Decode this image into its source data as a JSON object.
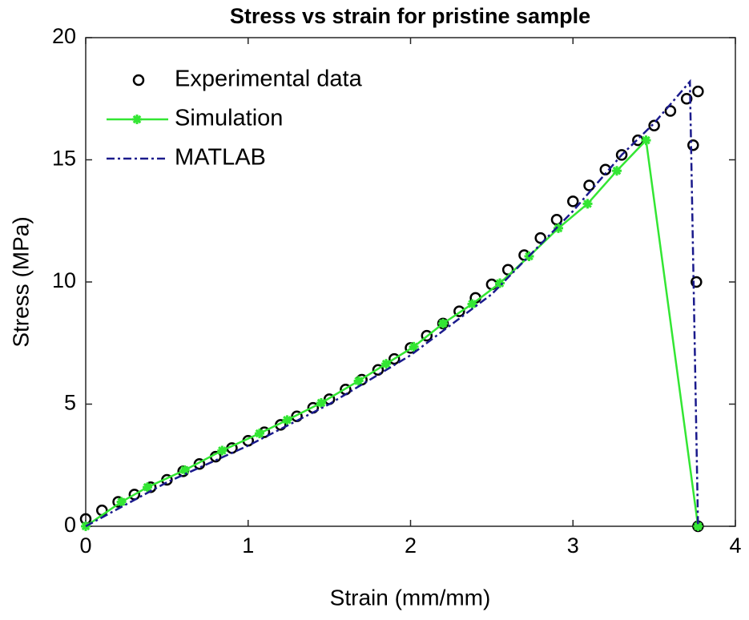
{
  "chart_data": {
    "type": "line",
    "title": "Stress vs strain for pristine sample",
    "x_label": "Strain (mm/mm)",
    "y_label": "Stress (MPa)",
    "xlim": [
      0,
      4
    ],
    "xticks": [
      0,
      1,
      2,
      3,
      4
    ],
    "ylim": [
      0,
      20
    ],
    "yticks": [
      0,
      5,
      10,
      15,
      20
    ],
    "legend": "upper left",
    "series": [
      {
        "name": "Experimental data",
        "color": "#000000",
        "marker": "o",
        "line_style": "none",
        "x": [
          0,
          0.1,
          0.2,
          0.3,
          0.4,
          0.5,
          0.6,
          0.7,
          0.8,
          0.9,
          1.0,
          1.1,
          1.2,
          1.3,
          1.4,
          1.5,
          1.6,
          1.7,
          1.8,
          1.9,
          2.0,
          2.1,
          2.2,
          2.3,
          2.4,
          2.5,
          2.6,
          2.7,
          2.8,
          2.9,
          3.0,
          3.1,
          3.2,
          3.3,
          3.4,
          3.5,
          3.6,
          3.7,
          3.77,
          3.74,
          3.76,
          3.77
        ],
        "values": [
          0.3,
          0.65,
          1.0,
          1.3,
          1.6,
          1.9,
          2.25,
          2.55,
          2.85,
          3.2,
          3.5,
          3.85,
          4.15,
          4.5,
          4.85,
          5.2,
          5.6,
          6.0,
          6.4,
          6.85,
          7.3,
          7.8,
          8.3,
          8.8,
          9.35,
          9.9,
          10.5,
          11.1,
          11.8,
          12.55,
          13.3,
          13.95,
          14.6,
          15.2,
          15.8,
          16.4,
          17.0,
          17.5,
          17.8,
          15.6,
          10.0,
          0
        ]
      },
      {
        "name": "Simulation",
        "color": "#33e633",
        "marker": "*",
        "line_style": "solid",
        "x": [
          0,
          0.22,
          0.38,
          0.61,
          0.84,
          1.07,
          1.24,
          1.45,
          1.68,
          1.85,
          2.02,
          2.2,
          2.38,
          2.55,
          2.73,
          2.91,
          3.09,
          3.27,
          3.45,
          3.77
        ],
        "values": [
          0,
          1.0,
          1.6,
          2.3,
          3.1,
          3.8,
          4.35,
          5.05,
          5.95,
          6.65,
          7.35,
          8.3,
          9.1,
          9.95,
          11.05,
          12.2,
          13.2,
          14.55,
          15.8,
          0
        ]
      },
      {
        "name": "MATLAB",
        "color": "#1a1a8c",
        "marker": "none",
        "line_style": "dashdot",
        "x": [
          0,
          0.5,
          1.0,
          1.5,
          2.0,
          2.5,
          3.0,
          3.3,
          3.5,
          3.72,
          3.77
        ],
        "values": [
          0,
          1.8,
          3.3,
          5.0,
          7.0,
          9.5,
          12.9,
          15.2,
          16.5,
          18.2,
          0
        ]
      }
    ]
  }
}
